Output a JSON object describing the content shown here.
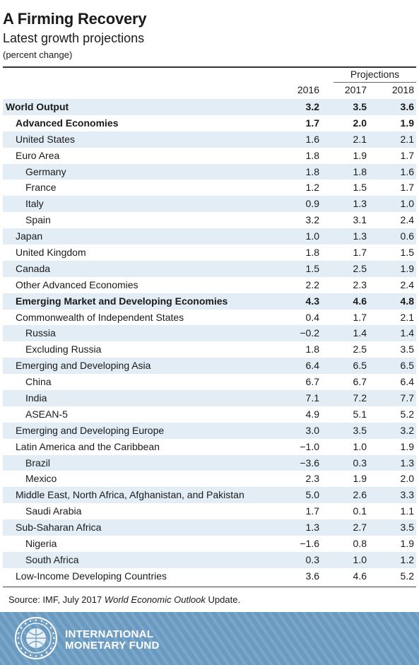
{
  "header": {
    "title": "A Firming Recovery",
    "subtitle": "Latest growth projections",
    "unit": "(percent change)"
  },
  "columns": {
    "projections_label": "Projections",
    "years": [
      "2016",
      "2017",
      "2018"
    ]
  },
  "rows": [
    {
      "label": "World Output",
      "values": [
        "3.2",
        "3.5",
        "3.6"
      ],
      "level": 0,
      "bold": true,
      "shade": true
    },
    {
      "label": "Advanced Economies",
      "values": [
        "1.7",
        "2.0",
        "1.9"
      ],
      "level": 1,
      "bold": true,
      "shade": false
    },
    {
      "label": "United States",
      "values": [
        "1.6",
        "2.1",
        "2.1"
      ],
      "level": 1,
      "bold": false,
      "shade": true
    },
    {
      "label": "Euro Area",
      "values": [
        "1.8",
        "1.9",
        "1.7"
      ],
      "level": 1,
      "bold": false,
      "shade": false
    },
    {
      "label": "Germany",
      "values": [
        "1.8",
        "1.8",
        "1.6"
      ],
      "level": 2,
      "bold": false,
      "shade": true
    },
    {
      "label": "France",
      "values": [
        "1.2",
        "1.5",
        "1.7"
      ],
      "level": 2,
      "bold": false,
      "shade": false
    },
    {
      "label": "Italy",
      "values": [
        "0.9",
        "1.3",
        "1.0"
      ],
      "level": 2,
      "bold": false,
      "shade": true
    },
    {
      "label": "Spain",
      "values": [
        "3.2",
        "3.1",
        "2.4"
      ],
      "level": 2,
      "bold": false,
      "shade": false
    },
    {
      "label": "Japan",
      "values": [
        "1.0",
        "1.3",
        "0.6"
      ],
      "level": 1,
      "bold": false,
      "shade": true
    },
    {
      "label": "United Kingdom",
      "values": [
        "1.8",
        "1.7",
        "1.5"
      ],
      "level": 1,
      "bold": false,
      "shade": false
    },
    {
      "label": "Canada",
      "values": [
        "1.5",
        "2.5",
        "1.9"
      ],
      "level": 1,
      "bold": false,
      "shade": true
    },
    {
      "label": "Other Advanced Economies",
      "values": [
        "2.2",
        "2.3",
        "2.4"
      ],
      "level": 1,
      "bold": false,
      "shade": false
    },
    {
      "label": "Emerging Market and Developing Economies",
      "values": [
        "4.3",
        "4.6",
        "4.8"
      ],
      "level": 1,
      "bold": true,
      "shade": true
    },
    {
      "label": "Commonwealth of Independent States",
      "values": [
        "0.4",
        "1.7",
        "2.1"
      ],
      "level": 1,
      "bold": false,
      "shade": false
    },
    {
      "label": "Russia",
      "values": [
        "−0.2",
        "1.4",
        "1.4"
      ],
      "level": 2,
      "bold": false,
      "shade": true
    },
    {
      "label": "Excluding Russia",
      "values": [
        "1.8",
        "2.5",
        "3.5"
      ],
      "level": 2,
      "bold": false,
      "shade": false
    },
    {
      "label": "Emerging and Developing Asia",
      "values": [
        "6.4",
        "6.5",
        "6.5"
      ],
      "level": 1,
      "bold": false,
      "shade": true
    },
    {
      "label": "China",
      "values": [
        "6.7",
        "6.7",
        "6.4"
      ],
      "level": 2,
      "bold": false,
      "shade": false
    },
    {
      "label": "India",
      "values": [
        "7.1",
        "7.2",
        "7.7"
      ],
      "level": 2,
      "bold": false,
      "shade": true
    },
    {
      "label": "ASEAN-5",
      "values": [
        "4.9",
        "5.1",
        "5.2"
      ],
      "level": 2,
      "bold": false,
      "shade": false
    },
    {
      "label": "Emerging and Developing Europe",
      "values": [
        "3.0",
        "3.5",
        "3.2"
      ],
      "level": 1,
      "bold": false,
      "shade": true
    },
    {
      "label": "Latin America and the Caribbean",
      "values": [
        "−1.0",
        "1.0",
        "1.9"
      ],
      "level": 1,
      "bold": false,
      "shade": false
    },
    {
      "label": "Brazil",
      "values": [
        "−3.6",
        "0.3",
        "1.3"
      ],
      "level": 2,
      "bold": false,
      "shade": true
    },
    {
      "label": "Mexico",
      "values": [
        "2.3",
        "1.9",
        "2.0"
      ],
      "level": 2,
      "bold": false,
      "shade": false
    },
    {
      "label": "Middle East, North Africa, Afghanistan, and Pakistan",
      "values": [
        "5.0",
        "2.6",
        "3.3"
      ],
      "level": 1,
      "bold": false,
      "shade": true
    },
    {
      "label": "Saudi Arabia",
      "values": [
        "1.7",
        "0.1",
        "1.1"
      ],
      "level": 2,
      "bold": false,
      "shade": false
    },
    {
      "label": "Sub-Saharan Africa",
      "values": [
        "1.3",
        "2.7",
        "3.5"
      ],
      "level": 1,
      "bold": false,
      "shade": true
    },
    {
      "label": "Nigeria",
      "values": [
        "−1.6",
        "0.8",
        "1.9"
      ],
      "level": 2,
      "bold": false,
      "shade": false
    },
    {
      "label": "South Africa",
      "values": [
        "0.3",
        "1.0",
        "1.2"
      ],
      "level": 2,
      "bold": false,
      "shade": true
    },
    {
      "label": "Low-Income Developing Countries",
      "values": [
        "3.6",
        "4.6",
        "5.2"
      ],
      "level": 1,
      "bold": false,
      "shade": false
    }
  ],
  "source": {
    "prefix": "Source: IMF, July 2017 ",
    "publication": "World Economic Outlook",
    "suffix": " Update."
  },
  "footer": {
    "brand_line1": "INTERNATIONAL",
    "brand_line2": "MONETARY FUND",
    "logo": "imf-seal-logo",
    "background_color": "#6b9ac0"
  },
  "colors": {
    "row_shade": "#e3edf5",
    "text": "#1a1a1a"
  }
}
